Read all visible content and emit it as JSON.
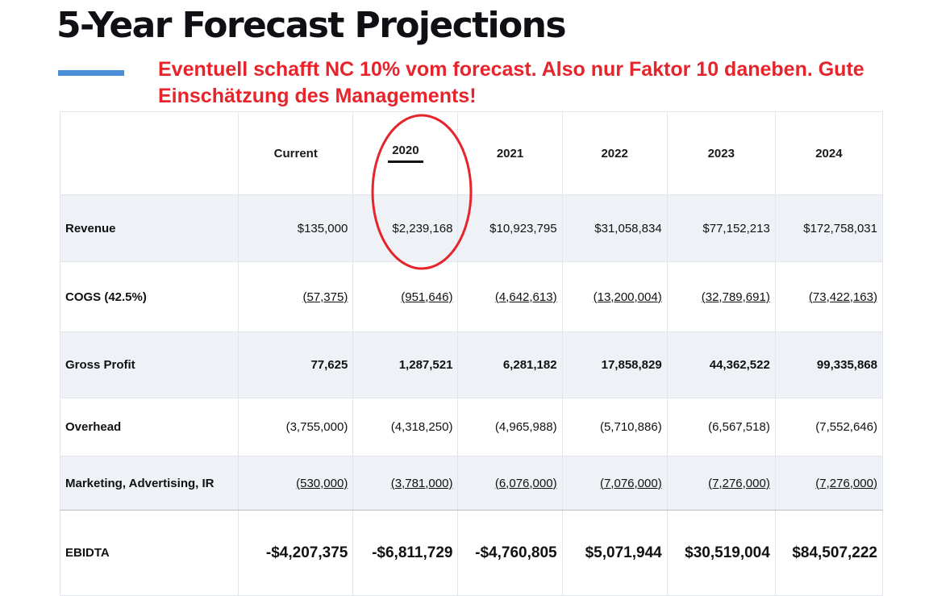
{
  "title": "5-Year Forecast Projections",
  "annotation": "Eventuell schafft NC 10% vom forecast. Also nur Faktor 10 daneben. Gute Einschätzung des Managements!",
  "colors": {
    "accent": "#4a90d9",
    "annotation": "#e5242b",
    "row_shade": "#eef2f7"
  },
  "table": {
    "columns": [
      "",
      "Current",
      "2020",
      "2021",
      "2022",
      "2023",
      "2024"
    ],
    "rows": [
      {
        "label": "Revenue",
        "values": [
          "$135,000",
          "$2,239,168",
          "$10,923,795",
          "$31,058,834",
          "$77,152,213",
          "$172,758,031"
        ]
      },
      {
        "label": "COGS (42.5%)",
        "values": [
          "(57,375)",
          "(951,646)",
          "(4,642,613)",
          "(13,200,004)",
          "(32,789,691)",
          "(73,422,163)"
        ]
      },
      {
        "label": "Gross Profit",
        "values": [
          "77,625",
          "1,287,521",
          "6,281,182",
          "17,858,829",
          "44,362,522",
          "99,335,868"
        ]
      },
      {
        "label": "Overhead",
        "values": [
          "(3,755,000)",
          "(4,318,250)",
          "(4,965,988)",
          "(5,710,886)",
          "(6,567,518)",
          "(7,552,646)"
        ]
      },
      {
        "label": "Marketing, Advertising, IR",
        "values": [
          "(530,000)",
          "(3,781,000)",
          "(6,076,000)",
          "(7,076,000)",
          "(7,276,000)",
          "(7,276,000)"
        ]
      },
      {
        "label": "EBIDTA",
        "values": [
          "-$4,207,375",
          "-$6,811,729",
          "-$4,760,805",
          "$5,071,944",
          "$30,519,004",
          "$84,507,222"
        ]
      }
    ]
  }
}
